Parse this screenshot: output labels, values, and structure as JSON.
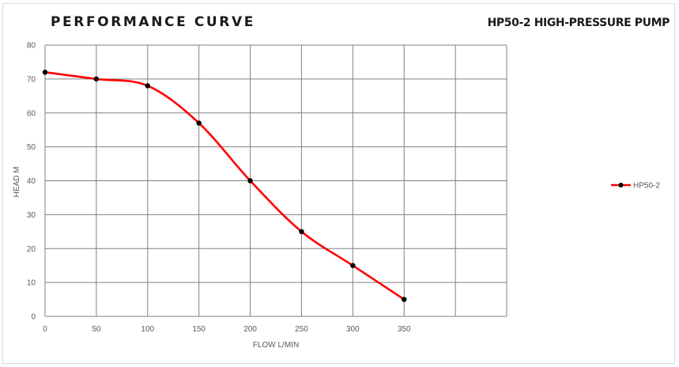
{
  "header": {
    "title": "PERFORMANCE CURVE",
    "model_title": "HP50-2 HIGH-PRESSURE PUMP"
  },
  "chart_data": {
    "type": "line",
    "xlabel": "FLOW L/MIN",
    "ylabel": "HEAD M",
    "xlim": [
      0,
      450
    ],
    "ylim": [
      0,
      80
    ],
    "x_ticks": [
      0,
      50,
      100,
      150,
      200,
      250,
      300,
      350,
      400,
      450
    ],
    "x_tick_labels": [
      "0",
      "50",
      "100",
      "150",
      "200",
      "250",
      "300",
      "350",
      "",
      ""
    ],
    "y_ticks": [
      0,
      10,
      20,
      30,
      40,
      50,
      60,
      70,
      80
    ],
    "grid": true,
    "legend_position": "right",
    "series": [
      {
        "name": "HP50-2",
        "color": "#ff0000",
        "marker_color": "#000000",
        "smooth": true,
        "x": [
          0,
          50,
          100,
          150,
          200,
          250,
          300,
          350
        ],
        "y": [
          72,
          70,
          68,
          57,
          40,
          25,
          15,
          5
        ]
      }
    ]
  }
}
